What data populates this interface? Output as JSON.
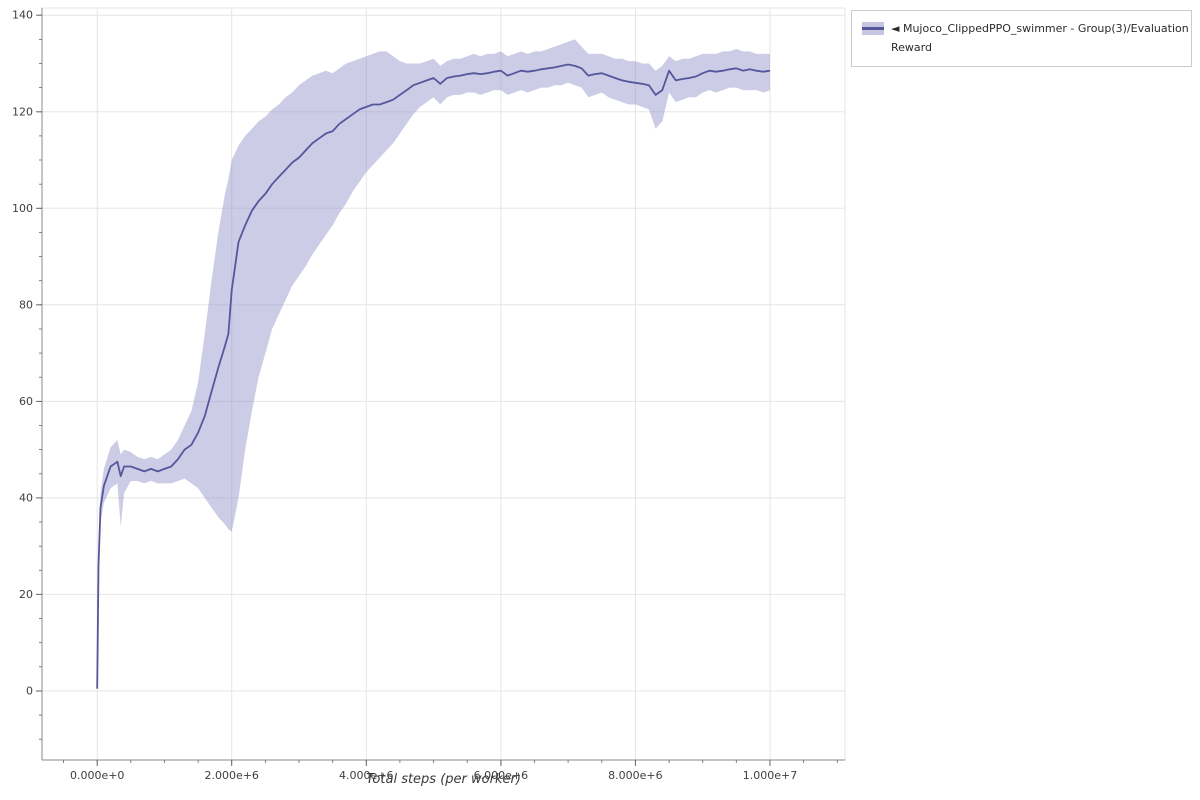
{
  "chart_data": {
    "type": "line",
    "title": "",
    "xlabel": "Total steps (per worker)",
    "ylabel": "",
    "xlim": [
      -820000,
      11115000
    ],
    "ylim": [
      -14.3,
      141.5
    ],
    "grid": true,
    "x_ticks": {
      "values": [
        0,
        2000000.0,
        4000000.0,
        6000000.0,
        8000000.0,
        10000000.0
      ],
      "labels": [
        "0.000e+0",
        "2.000e+6",
        "4.000e+6",
        "6.000e+6",
        "8.000e+6",
        "1.000e+7"
      ],
      "minor_step": 500000.0
    },
    "y_ticks": {
      "values": [
        0,
        20,
        40,
        60,
        80,
        100,
        120,
        140
      ],
      "labels": [
        "0",
        "20",
        "40",
        "60",
        "80",
        "100",
        "120",
        "140"
      ],
      "minor_step": 5
    },
    "legend": {
      "position": "top-right-outside",
      "items": [
        {
          "marker": "◄",
          "label": "Mujoco_ClippedPPO_swimmer - Group(3)/Evaluation Reward",
          "label_line1": "Mujoco_ClippedPPO_swimmer - Group(3)/Evaluation",
          "label_line2": "Reward"
        }
      ]
    },
    "colors": {
      "line": "#55569b",
      "band": "#8e8ec7",
      "band_opacity": 0.45,
      "grid": "#e5e5e5",
      "outline": "#e5e5e5",
      "axis": "#8a8a8a",
      "tick": "#666666",
      "tick_label": "#3f3f3f"
    },
    "series": [
      {
        "name": "Mujoco_ClippedPPO_swimmer - Group(3)/Evaluation Reward",
        "x": [
          0,
          20000.0,
          50000.0,
          100000.0,
          200000.0,
          300000.0,
          350000.0,
          400000.0,
          500000.0,
          600000.0,
          700000.0,
          800000.0,
          900000.0,
          1000000.0,
          1100000.0,
          1200000.0,
          1300000.0,
          1400000.0,
          1500000.0,
          1600000.0,
          1700000.0,
          1800000.0,
          1900000.0,
          1950000.0,
          2000000.0,
          2100000.0,
          2200000.0,
          2300000.0,
          2400000.0,
          2500000.0,
          2600000.0,
          2700000.0,
          2800000.0,
          2900000.0,
          3000000.0,
          3100000.0,
          3200000.0,
          3300000.0,
          3400000.0,
          3500000.0,
          3600000.0,
          3700000.0,
          3800000.0,
          3900000.0,
          4000000.0,
          4100000.0,
          4200000.0,
          4300000.0,
          4400000.0,
          4500000.0,
          4600000.0,
          4700000.0,
          4800000.0,
          4900000.0,
          5000000.0,
          5100000.0,
          5200000.0,
          5300000.0,
          5400000.0,
          5500000.0,
          5600000.0,
          5700000.0,
          5800000.0,
          5900000.0,
          6000000.0,
          6100000.0,
          6200000.0,
          6300000.0,
          6400000.0,
          6500000.0,
          6600000.0,
          6700000.0,
          6800000.0,
          6900000.0,
          7000000.0,
          7100000.0,
          7200000.0,
          7300000.0,
          7400000.0,
          7500000.0,
          7600000.0,
          7700000.0,
          7800000.0,
          7900000.0,
          8000000.0,
          8100000.0,
          8200000.0,
          8300000.0,
          8400000.0,
          8500000.0,
          8600000.0,
          8700000.0,
          8800000.0,
          8900000.0,
          9000000.0,
          9100000.0,
          9200000.0,
          9300000.0,
          9400000.0,
          9500000.0,
          9600000.0,
          9700000.0,
          9800000.0,
          9900000.0,
          10000000.0
        ],
        "mean": [
          0.5,
          26,
          38,
          42.5,
          46.5,
          47.5,
          44.5,
          46.5,
          46.5,
          46,
          45.5,
          46,
          45.5,
          46,
          46.5,
          48,
          50,
          51,
          53.5,
          57,
          62,
          67,
          71.5,
          74,
          83,
          93,
          96.5,
          99.5,
          101.5,
          103,
          105,
          106.5,
          108,
          109.5,
          110.5,
          112,
          113.5,
          114.5,
          115.5,
          116,
          117.5,
          118.5,
          119.5,
          120.5,
          121,
          121.5,
          121.5,
          122,
          122.5,
          123.5,
          124.5,
          125.5,
          126,
          126.5,
          127,
          125.8,
          127,
          127.3,
          127.5,
          127.8,
          128,
          127.8,
          128,
          128.3,
          128.5,
          127.5,
          128,
          128.5,
          128.3,
          128.5,
          128.8,
          129,
          129.2,
          129.5,
          129.8,
          129.5,
          129,
          127.5,
          127.8,
          128,
          127.5,
          127,
          126.5,
          126.2,
          126,
          125.8,
          125.5,
          123.5,
          124.5,
          128.5,
          126.5,
          126.8,
          127,
          127.3,
          128,
          128.5,
          128.3,
          128.5,
          128.8,
          129,
          128.5,
          128.8,
          128.5,
          128.3,
          128.5
        ],
        "lower": [
          0.3,
          24,
          35,
          39,
          42,
          43,
          34,
          41,
          43.5,
          43.5,
          43,
          43.5,
          43,
          43,
          43,
          43.5,
          44,
          43,
          42,
          40,
          38,
          36,
          34.5,
          33.5,
          33,
          40,
          50,
          58,
          65,
          70,
          75,
          78,
          81,
          84,
          86,
          88,
          90.5,
          92.5,
          94.5,
          96.5,
          99,
          101,
          103.5,
          105.5,
          107.5,
          109,
          110.5,
          112,
          113.5,
          115.5,
          117.5,
          119.5,
          121,
          122,
          123,
          121.5,
          123,
          123.5,
          123.5,
          124,
          124,
          123.5,
          124,
          124.5,
          124.5,
          123.5,
          124,
          124.5,
          124,
          124.5,
          125,
          125,
          125.5,
          125.5,
          126,
          125.5,
          125,
          123,
          123.5,
          124,
          123,
          122.5,
          122,
          121.5,
          121.5,
          121,
          120.5,
          116.5,
          118,
          124,
          122,
          122.5,
          123,
          123,
          124,
          124.5,
          124,
          124.5,
          125,
          125,
          124.5,
          124.5,
          124.5,
          124,
          124.5
        ],
        "upper": [
          0.8,
          28,
          41,
          46,
          50.5,
          52,
          49,
          50,
          49.5,
          48.5,
          48,
          48.5,
          48,
          49,
          50,
          52,
          55,
          58,
          64,
          74,
          85,
          95,
          103,
          106,
          110,
          113,
          115,
          116.5,
          118,
          119,
          120.5,
          121.5,
          123,
          124,
          125.5,
          126.5,
          127.5,
          128,
          128.5,
          128,
          129,
          130,
          130.5,
          131,
          131.5,
          132,
          132.5,
          132.5,
          131.5,
          130.5,
          130,
          130,
          130,
          130.5,
          131,
          129.5,
          130.5,
          131,
          131,
          131.5,
          132,
          131.5,
          132,
          132,
          132.5,
          131.5,
          132,
          132.5,
          132,
          132.5,
          132.5,
          133,
          133.5,
          134,
          134.5,
          135,
          133.5,
          132,
          132,
          132,
          131.5,
          131,
          131,
          130.5,
          130.5,
          130,
          130,
          128.5,
          129.5,
          131.5,
          130.5,
          131,
          131,
          131.5,
          132,
          132,
          132,
          132.5,
          132.5,
          133,
          132.5,
          132.5,
          132,
          132,
          132
        ]
      }
    ]
  }
}
